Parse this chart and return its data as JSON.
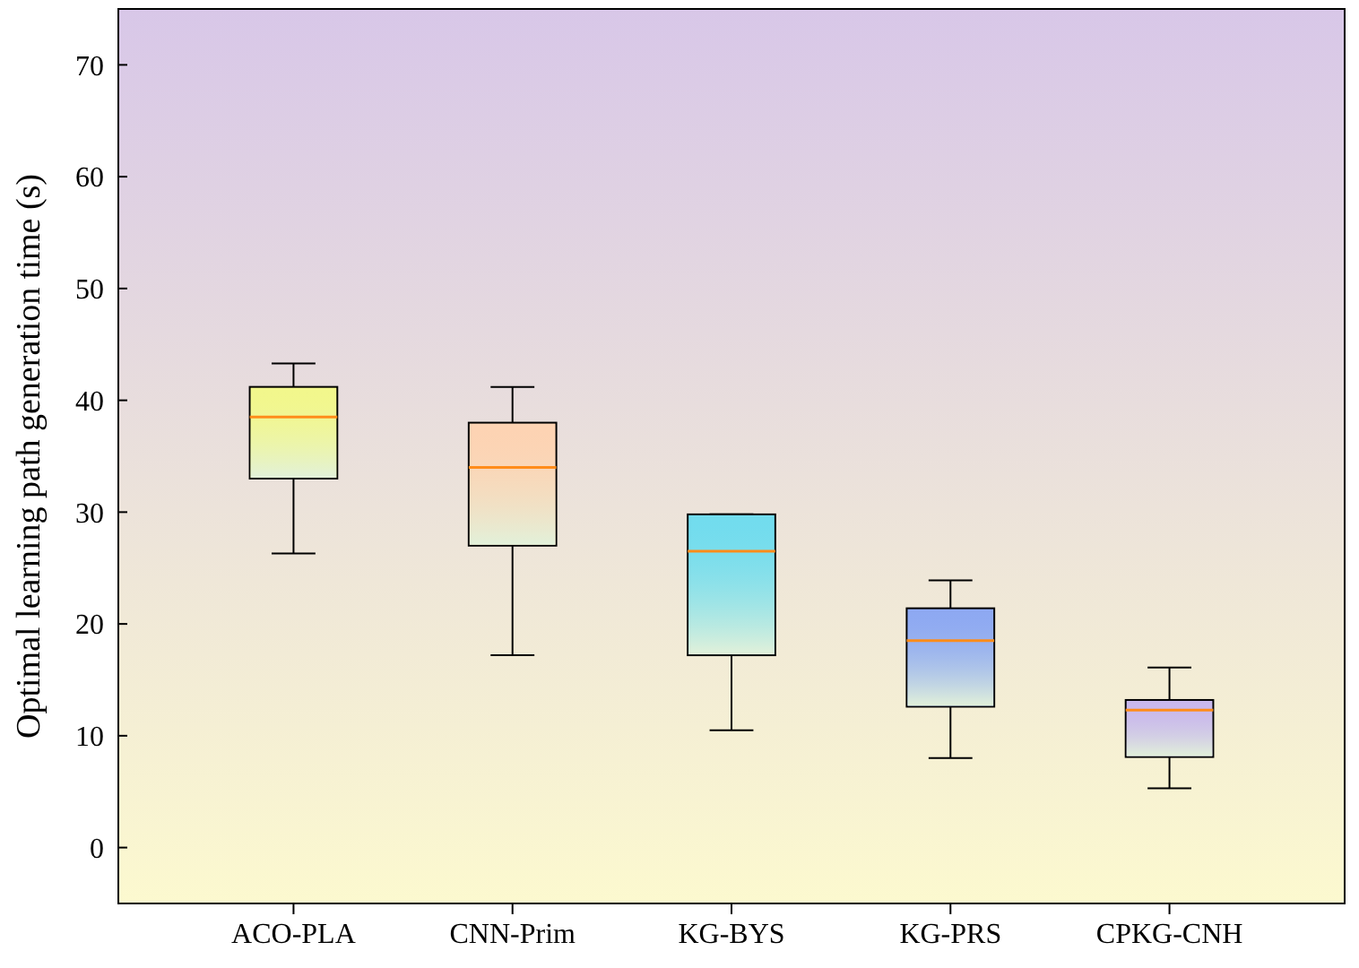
{
  "chart_data": {
    "type": "box",
    "ylabel": "Optimal learning path generation time (s)",
    "categories": [
      "ACO-PLA",
      "CNN-Prim",
      "KG-BYS",
      "KG-PRS",
      "CPKG-CNH"
    ],
    "boxes": [
      {
        "low": 26.3,
        "q1": 33.0,
        "median": 38.5,
        "q3": 41.2,
        "high": 43.3
      },
      {
        "low": 17.2,
        "q1": 27.0,
        "median": 34.0,
        "q3": 38.0,
        "high": 41.2
      },
      {
        "low": 10.5,
        "q1": 17.2,
        "median": 26.5,
        "q3": 29.8,
        "high": 29.8
      },
      {
        "low": 8.0,
        "q1": 12.6,
        "median": 18.5,
        "q3": 21.4,
        "high": 23.9
      },
      {
        "low": 5.3,
        "q1": 8.1,
        "median": 12.3,
        "q3": 13.2,
        "high": 16.1
      }
    ],
    "colors": [
      "#f2f78c",
      "#fdd3b3",
      "#72dcee",
      "#8ea9f2",
      "#c9b8ec"
    ],
    "ylim": [
      -5,
      75
    ],
    "yticks": [
      0,
      10,
      20,
      30,
      40,
      50,
      60,
      70
    ],
    "grid": false
  }
}
